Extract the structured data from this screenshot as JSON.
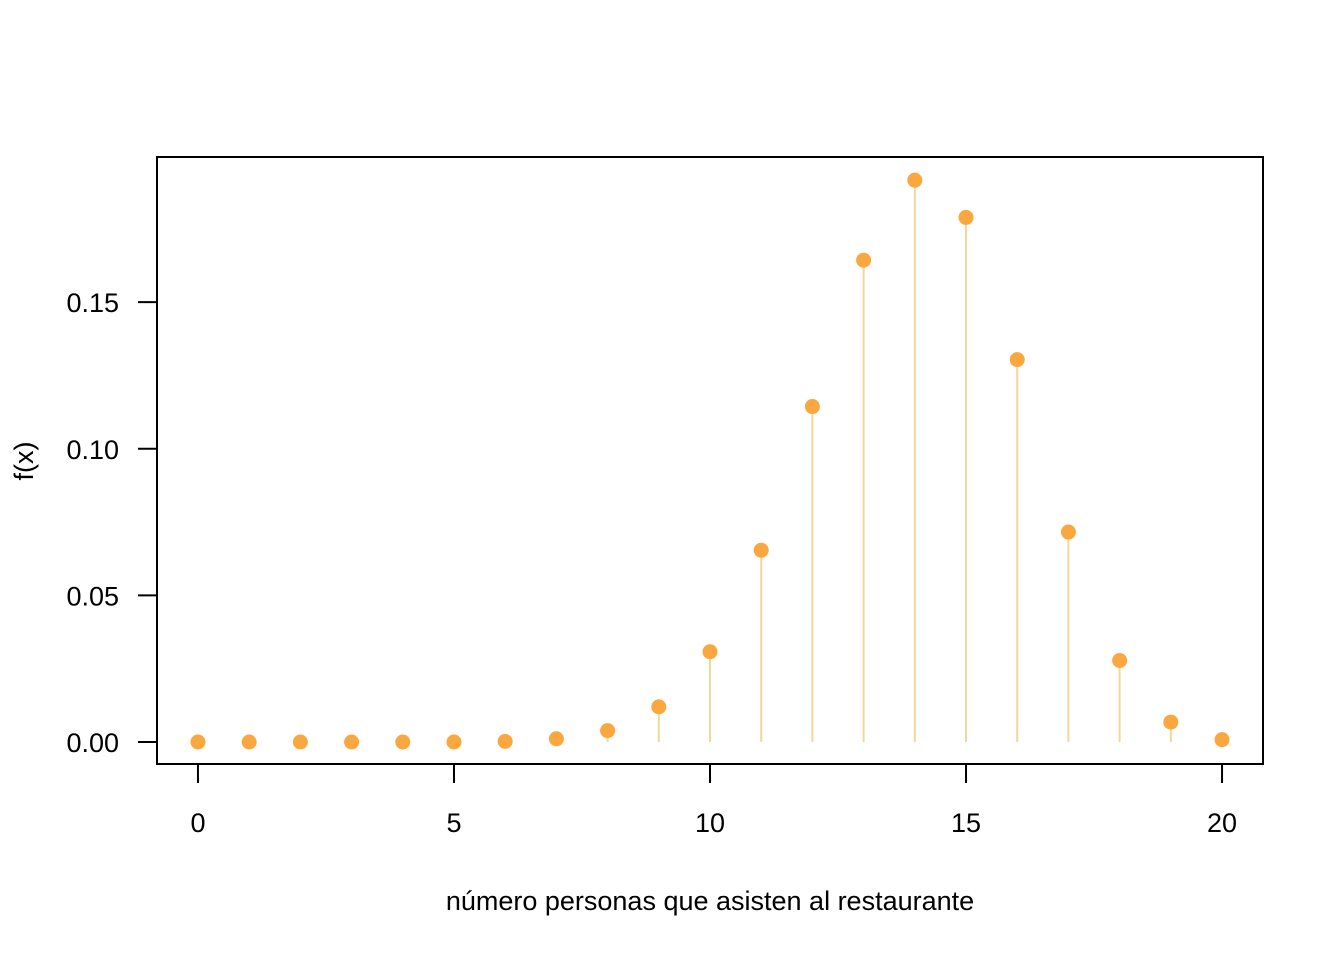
{
  "chart_data": {
    "type": "scatter",
    "style": "lollipop",
    "xlabel": "número personas que asisten al restaurante",
    "ylabel": "f(x)",
    "xlim": [
      -0.8,
      20.8
    ],
    "ylim": [
      -0.0075,
      0.1995
    ],
    "x_ticks": [
      0,
      5,
      10,
      15,
      20
    ],
    "x_tick_labels": [
      "0",
      "5",
      "10",
      "15",
      "20"
    ],
    "y_ticks": [
      0,
      0.05,
      0.1,
      0.15
    ],
    "y_tick_labels": [
      "0.00",
      "0.05",
      "0.10",
      "0.15"
    ],
    "grid": false,
    "colors": {
      "point": "#F9A73E",
      "stem": "#F2D79B",
      "axis": "#000000"
    },
    "x": [
      0,
      1,
      2,
      3,
      4,
      5,
      6,
      7,
      8,
      9,
      10,
      11,
      12,
      13,
      14,
      15,
      16,
      17,
      18,
      19,
      20
    ],
    "y": [
      0.0,
      0.0,
      0.0,
      0.0,
      0.0,
      0.0,
      0.0002,
      0.0011,
      0.0039,
      0.012,
      0.0308,
      0.0654,
      0.1144,
      0.1643,
      0.1916,
      0.1789,
      0.1304,
      0.0716,
      0.0278,
      0.0068,
      0.0008
    ]
  }
}
